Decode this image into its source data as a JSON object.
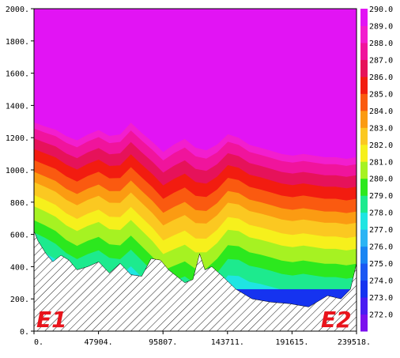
{
  "chart_data": {
    "type": "filled-contour cross-section",
    "x_ticks": [
      "0.",
      "47904.",
      "95807.",
      "143711.",
      "191615.",
      "239518."
    ],
    "y_ticks": [
      "0.",
      "200.",
      "400.",
      "600.",
      "800.",
      "1000.",
      "1200.",
      "1400.",
      "1600.",
      "1800.",
      "2000."
    ],
    "ylim": [
      0,
      2000
    ],
    "xlim": [
      0,
      239518
    ],
    "colorbar": {
      "labels": [
        "272.0",
        "273.0",
        "274.0",
        "275.0",
        "276.0",
        "277.0",
        "278.0",
        "279.0",
        "280.0",
        "281.0",
        "282.0",
        "283.0",
        "284.0",
        "285.0",
        "286.0",
        "287.0",
        "288.0",
        "289.0",
        "290.0"
      ],
      "colors": [
        "#7b10ee",
        "#4a1cf2",
        "#1533f0",
        "#1b58f3",
        "#1a85f3",
        "#2cb4f4",
        "#1fe5e2",
        "#1dea8e",
        "#2ce81e",
        "#a6f222",
        "#f6f01c",
        "#fbc821",
        "#fb9b12",
        "#fa5a10",
        "#f21c10",
        "#e6125a",
        "#f0149c",
        "#f21ece",
        "#e214f4"
      ]
    },
    "terrain": {
      "x": [
        0,
        3000,
        9000,
        14000,
        20000,
        26000,
        32000,
        40000,
        48000,
        56000,
        64000,
        72000,
        80000,
        87000,
        94000,
        100000,
        106000,
        112000,
        118000,
        123000,
        127000,
        132000,
        140000,
        150000,
        162000,
        176000,
        190000,
        204000,
        218000,
        228000,
        235000,
        239518
      ],
      "y": [
        620,
        560,
        480,
        430,
        470,
        440,
        380,
        400,
        430,
        360,
        420,
        350,
        340,
        450,
        440,
        380,
        340,
        300,
        320,
        480,
        380,
        400,
        340,
        260,
        200,
        180,
        170,
        150,
        220,
        200,
        260,
        420
      ]
    },
    "markers": [
      "E1",
      "E2"
    ]
  }
}
